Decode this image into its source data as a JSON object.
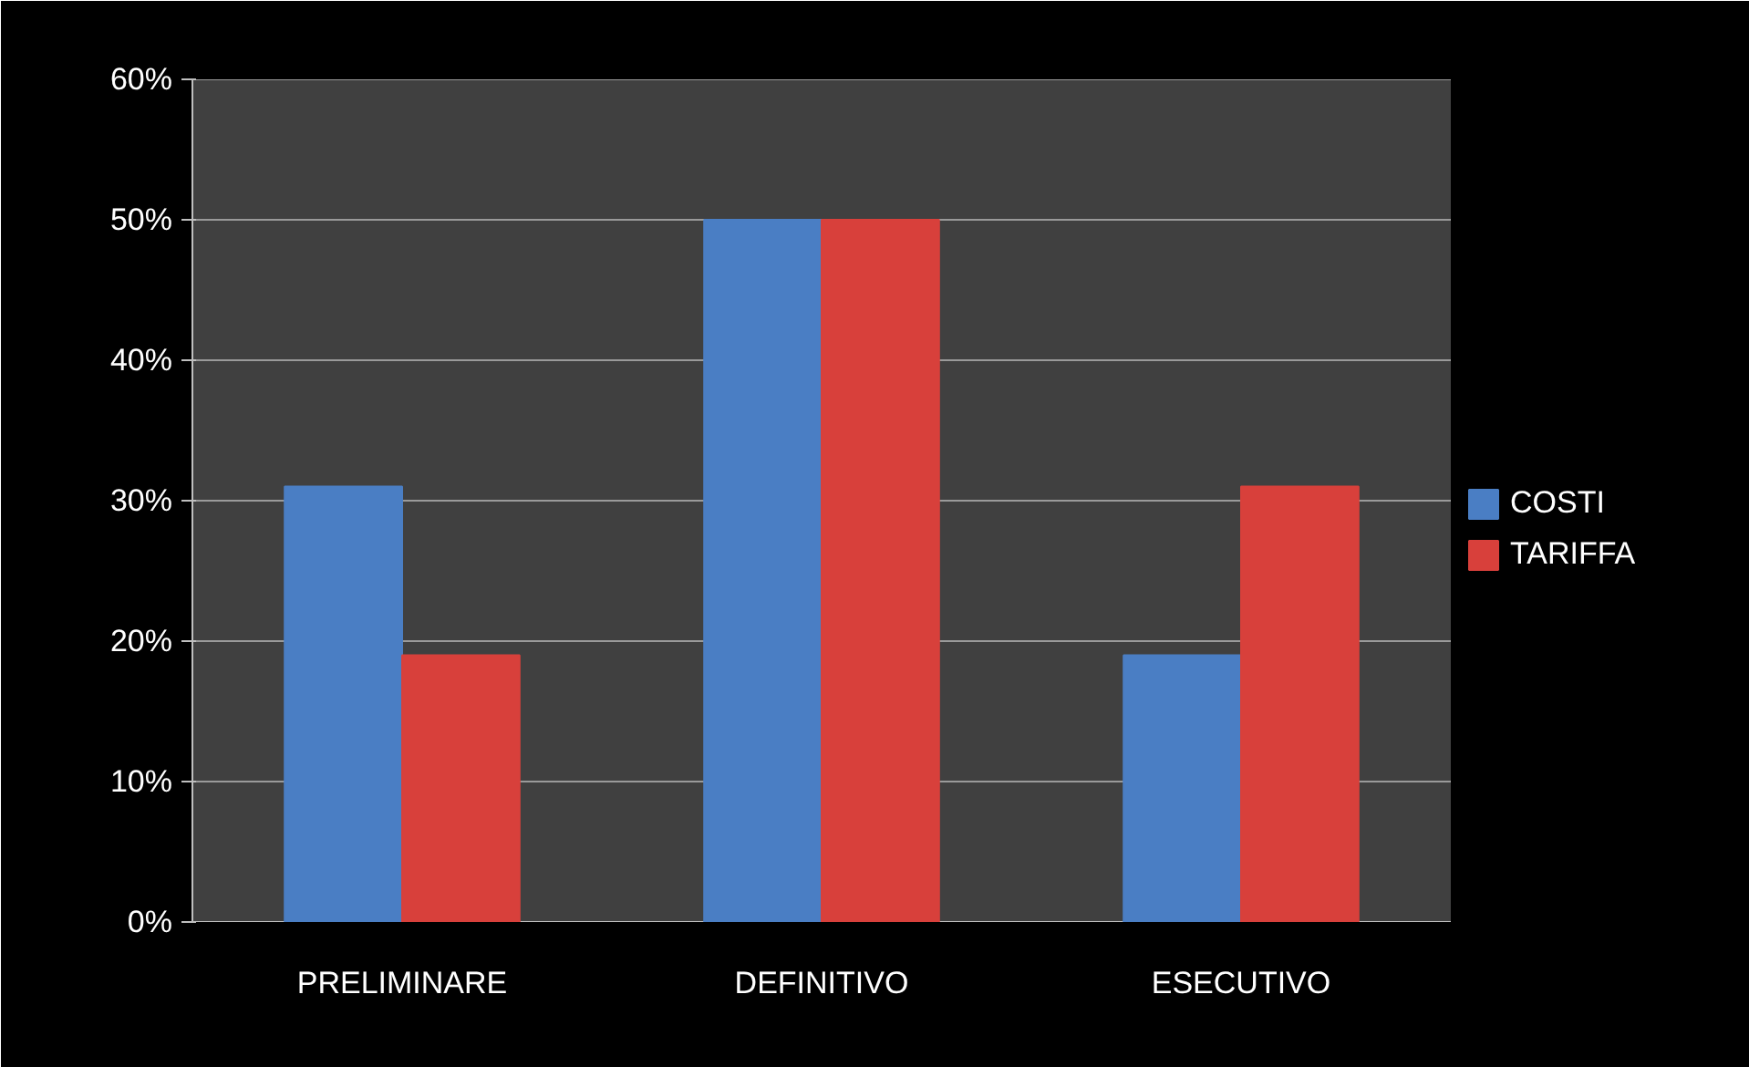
{
  "chart_data": {
    "type": "bar",
    "categories": [
      "PRELIMINARE",
      "DEFINITIVO",
      "ESECUTIVO"
    ],
    "series": [
      {
        "name": "COSTI",
        "color": "#4a7ec4",
        "values": [
          31,
          50,
          19
        ]
      },
      {
        "name": "TARIFFA",
        "color": "#d8403b",
        "values": [
          19,
          50,
          31
        ]
      }
    ],
    "ylim": [
      0,
      60
    ],
    "yticks": [
      {
        "value": 0,
        "label": "0%"
      },
      {
        "value": 10,
        "label": "10%"
      },
      {
        "value": 20,
        "label": "20%"
      },
      {
        "value": 30,
        "label": "30%"
      },
      {
        "value": 40,
        "label": "40%"
      },
      {
        "value": 50,
        "label": "50%"
      },
      {
        "value": 60,
        "label": "60%"
      }
    ],
    "grid": "y",
    "legend": "right"
  }
}
